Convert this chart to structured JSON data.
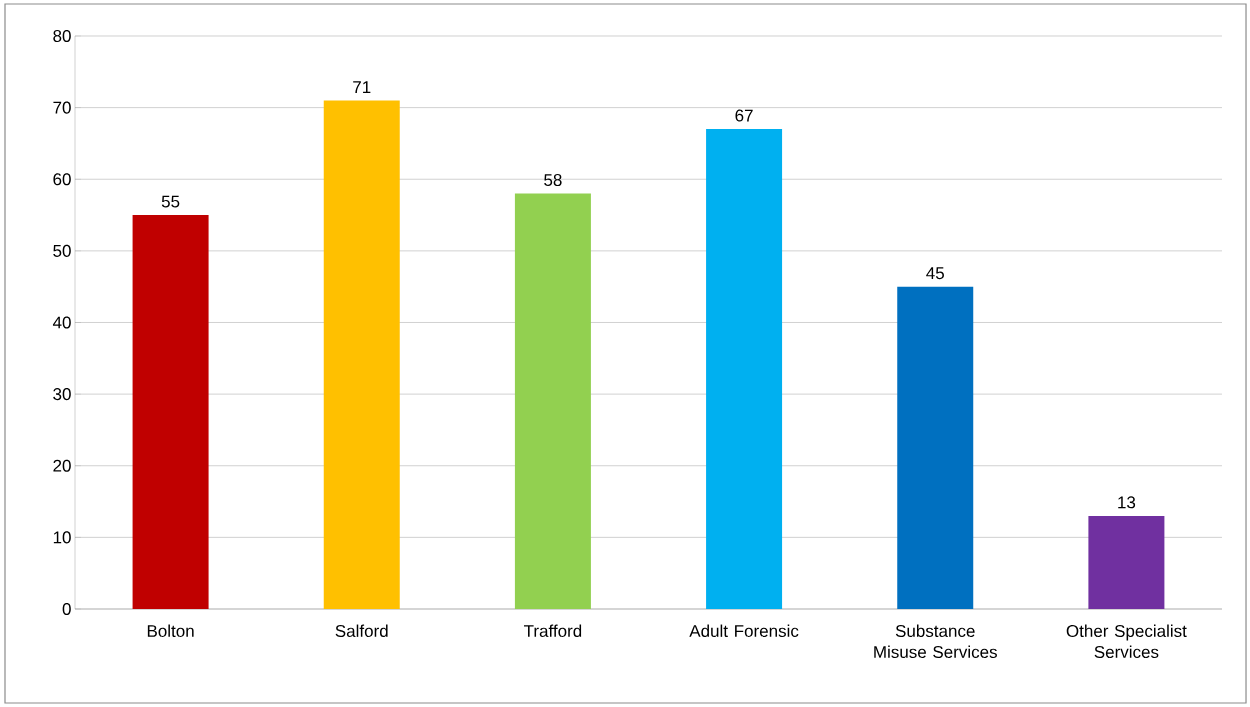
{
  "chart_data": {
    "type": "bar",
    "categories": [
      "Bolton",
      "Salford",
      "Trafford",
      "Adult Forensic",
      "Substance Misuse Services",
      "Other Specialist Services"
    ],
    "values": [
      55,
      71,
      58,
      67,
      45,
      13
    ],
    "colors": [
      "#c00000",
      "#ffc000",
      "#92d050",
      "#00b0f0",
      "#0070c0",
      "#7030a0"
    ],
    "ylim": [
      0,
      80
    ],
    "yticks": [
      0,
      10,
      20,
      30,
      40,
      50,
      60,
      70,
      80
    ],
    "grid": "y",
    "data_labels": true
  }
}
